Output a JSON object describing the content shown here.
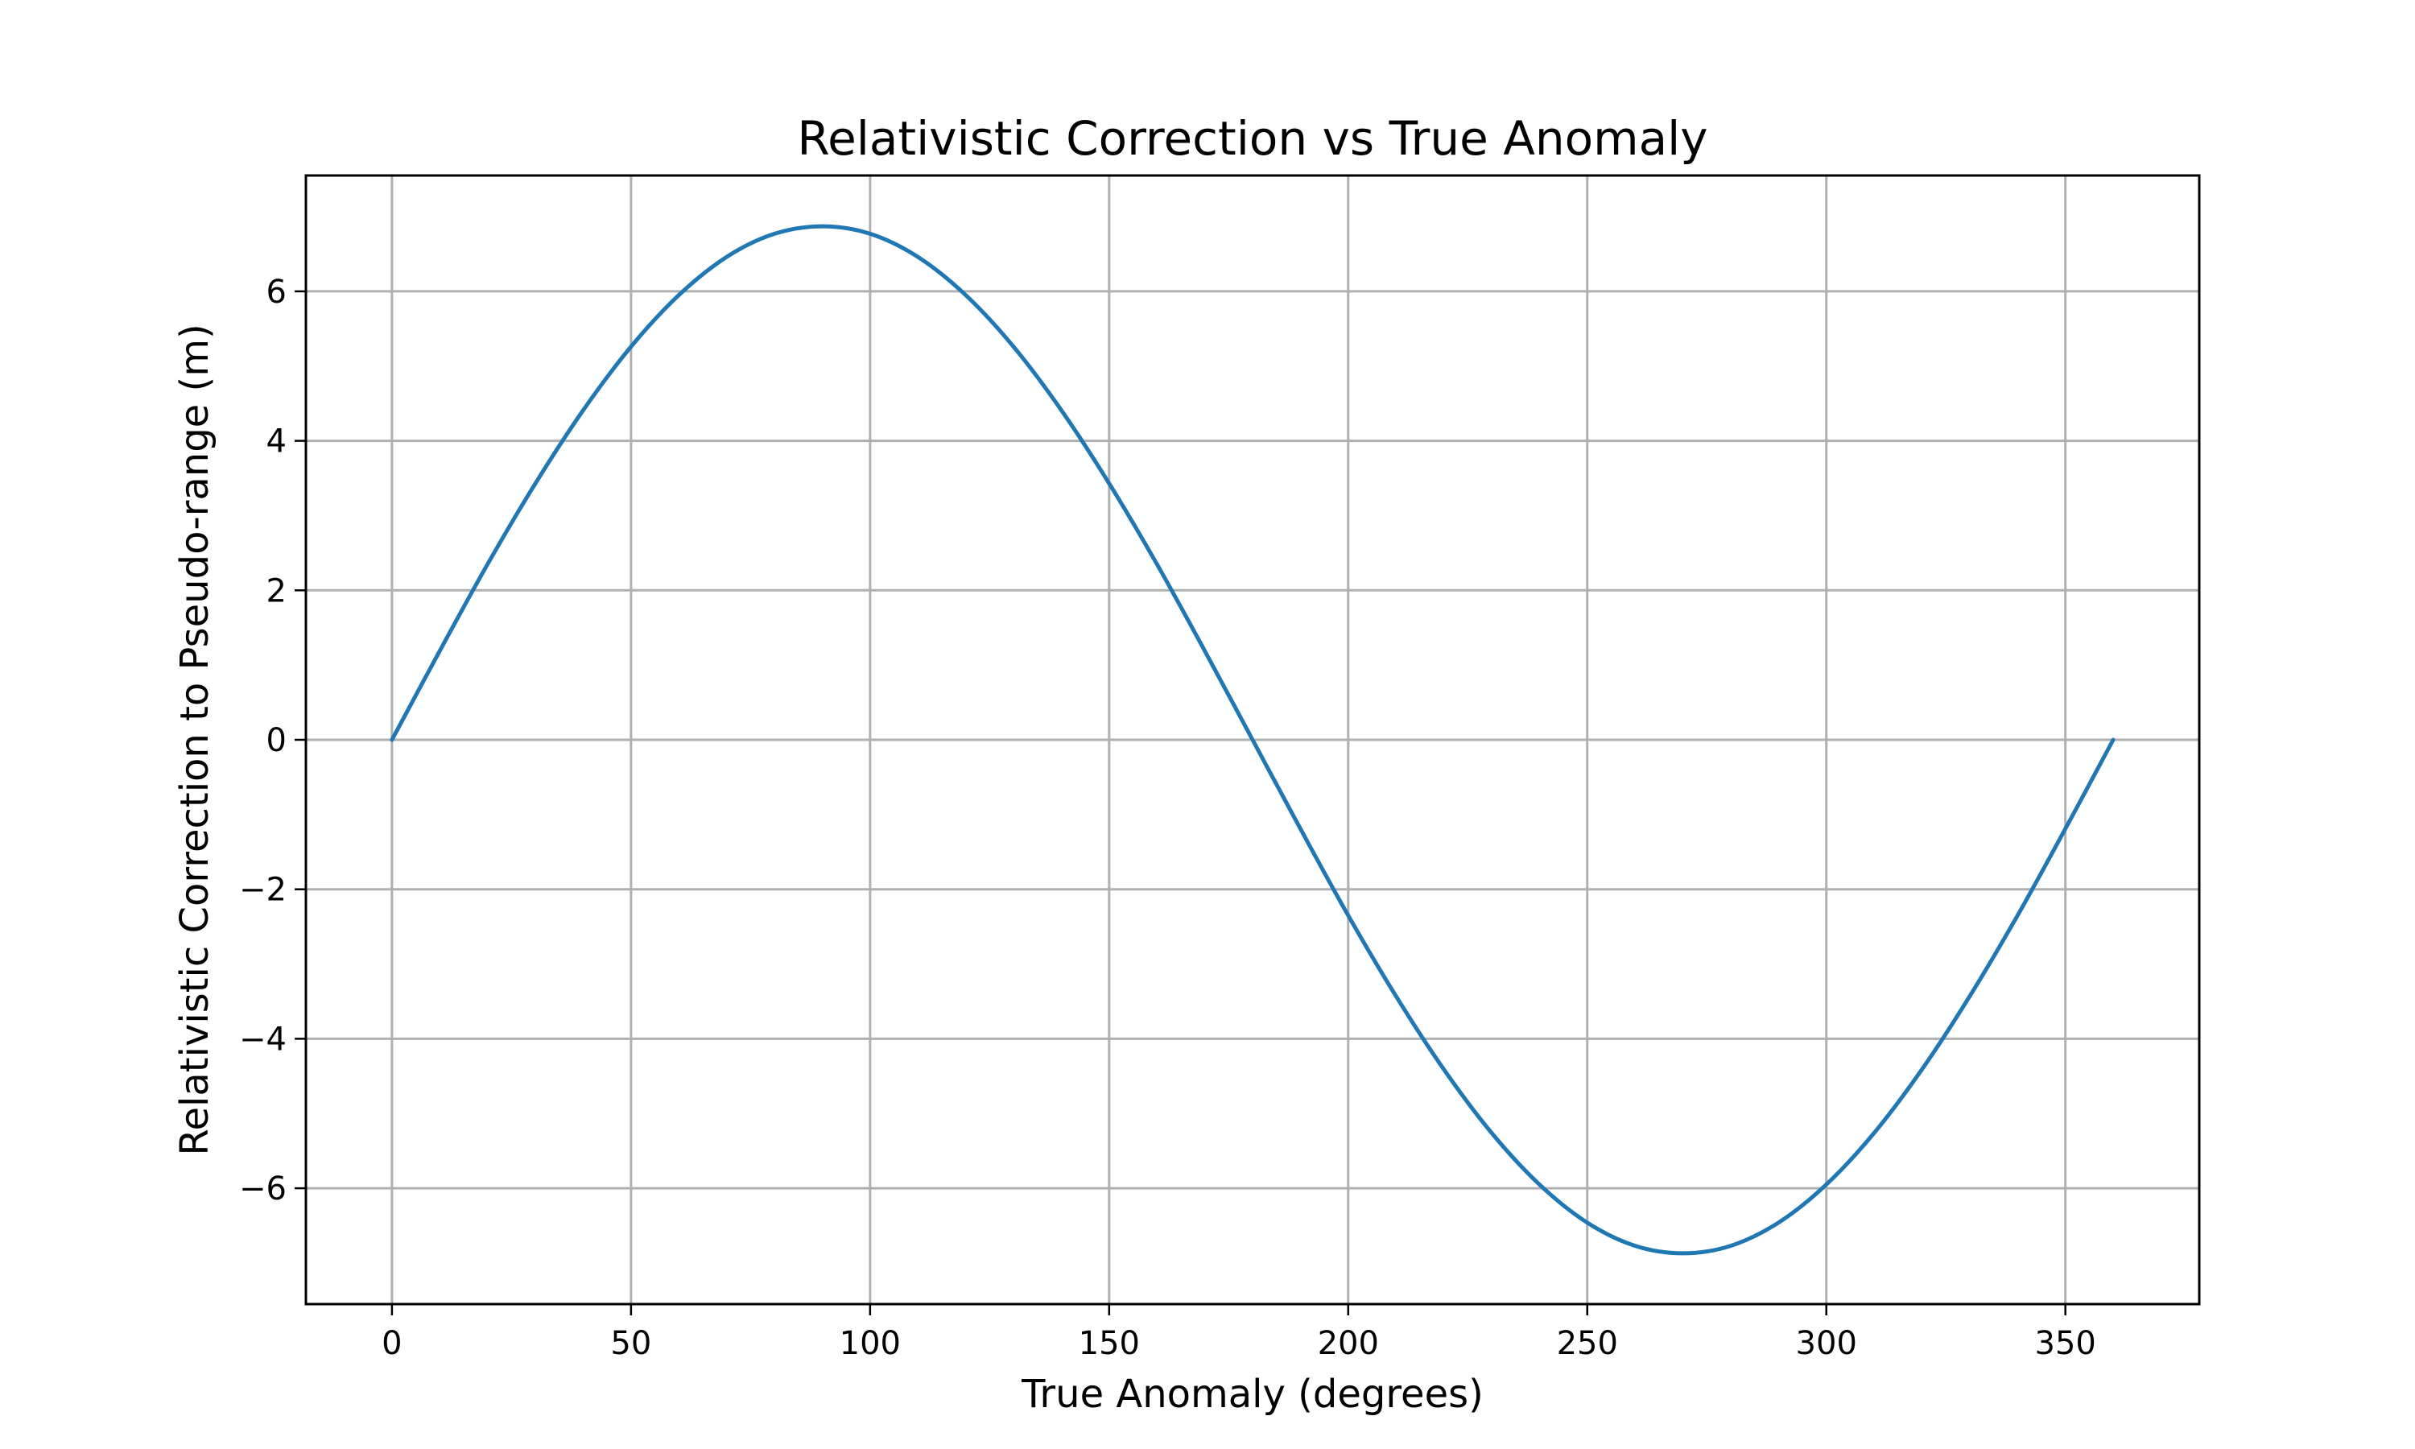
{
  "chart_data": {
    "type": "line",
    "title": "Relativistic Correction vs True Anomaly",
    "xlabel": "True Anomaly (degrees)",
    "ylabel": "Relativistic Correction to Pseudo-range (m)",
    "xlim": [
      -18,
      378
    ],
    "ylim": [
      -7.55,
      7.55
    ],
    "xticks": [
      0,
      50,
      100,
      150,
      200,
      250,
      300,
      350
    ],
    "xtick_labels": [
      "0",
      "50",
      "100",
      "150",
      "200",
      "250",
      "300",
      "350"
    ],
    "yticks": [
      -6,
      -4,
      -2,
      0,
      2,
      4,
      6
    ],
    "ytick_labels": [
      "−6",
      "−4",
      "−2",
      "0",
      "2",
      "4",
      "6"
    ],
    "grid": true,
    "series": [
      {
        "color": "#1f77b4",
        "x": [
          0,
          10,
          20,
          30,
          40,
          50,
          60,
          70,
          80,
          90,
          100,
          110,
          120,
          130,
          140,
          150,
          160,
          170,
          180,
          190,
          200,
          210,
          220,
          230,
          240,
          250,
          260,
          270,
          280,
          290,
          300,
          310,
          320,
          330,
          340,
          350,
          360
        ],
        "y": [
          0,
          1.19,
          2.35,
          3.43,
          4.41,
          5.26,
          5.95,
          6.46,
          6.77,
          6.87,
          6.77,
          6.46,
          5.95,
          5.26,
          4.41,
          3.43,
          2.35,
          1.19,
          0,
          -1.19,
          -2.35,
          -3.43,
          -4.41,
          -5.26,
          -5.95,
          -6.46,
          -6.77,
          -6.87,
          -6.77,
          -6.46,
          -5.95,
          -5.26,
          -4.41,
          -3.43,
          -2.35,
          -1.19,
          0
        ]
      }
    ]
  }
}
